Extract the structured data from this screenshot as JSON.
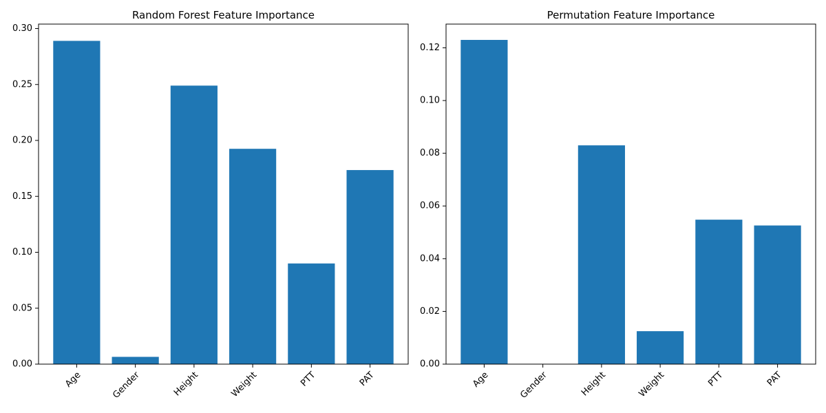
{
  "chart_data": [
    {
      "type": "bar",
      "title": "Random Forest Feature Importance",
      "xlabel": "",
      "ylabel": "",
      "categories": [
        "Age",
        "Gender",
        "Height",
        "Weight",
        "PTT",
        "PAT"
      ],
      "values": [
        0.289,
        0.0065,
        0.249,
        0.1925,
        0.09,
        0.1735
      ],
      "ylim": [
        0,
        0.304
      ],
      "yticks": [
        "0.00",
        "0.05",
        "0.10",
        "0.15",
        "0.20",
        "0.25",
        "0.30"
      ],
      "bar_color": "#1f77b4",
      "grid": false
    },
    {
      "type": "bar",
      "title": "Permutation Feature Importance",
      "xlabel": "",
      "ylabel": "",
      "categories": [
        "Age",
        "Gender",
        "Height",
        "Weight",
        "PTT",
        "PAT"
      ],
      "values": [
        0.123,
        0.0,
        0.083,
        0.0125,
        0.0548,
        0.0526
      ],
      "ylim": [
        0,
        0.129
      ],
      "yticks": [
        "0.00",
        "0.02",
        "0.04",
        "0.06",
        "0.08",
        "0.10",
        "0.12"
      ],
      "bar_color": "#1f77b4",
      "grid": false
    }
  ]
}
